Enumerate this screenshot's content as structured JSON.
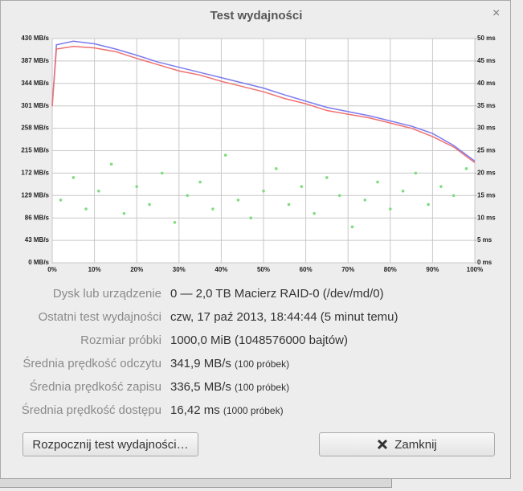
{
  "dialog": {
    "title": "Test wydajności",
    "close": "×",
    "rows": [
      {
        "label": "Dysk lub urządzenie",
        "value": "0 — 2,0 TB Macierz RAID-0 (/dev/md/0)"
      },
      {
        "label": "Ostatni test wydajności",
        "value": "czw, 17 paź 2013, 18:44:44 (5 minut temu)"
      },
      {
        "label": "Rozmiar próbki",
        "value": "1000,0 MiB (1048576000 bajtów)"
      },
      {
        "label": "Średnia prędkość odczytu",
        "value": "341,9 MB/s",
        "note": "(100 próbek)"
      },
      {
        "label": "Średnia prędkość zapisu",
        "value": "336,5 MB/s",
        "note": "(100 próbek)"
      },
      {
        "label": "Średnia prędkość dostępu",
        "value": "16,42 ms",
        "note": "(1000 próbek)"
      }
    ],
    "buttons": {
      "start": "Rozpocznij test wydajności…",
      "close": "Zamknij"
    }
  },
  "chart_data": {
    "type": "line",
    "x": [
      0,
      1,
      5,
      10,
      15,
      20,
      25,
      30,
      35,
      40,
      45,
      50,
      55,
      60,
      65,
      70,
      75,
      80,
      85,
      90,
      95,
      100
    ],
    "xlim": [
      0,
      100
    ],
    "xticks": [
      {
        "value": 0,
        "label": "0%"
      },
      {
        "value": 10,
        "label": "10%"
      },
      {
        "value": 20,
        "label": "20%"
      },
      {
        "value": 30,
        "label": "30%"
      },
      {
        "value": 40,
        "label": "40%"
      },
      {
        "value": 50,
        "label": "50%"
      },
      {
        "value": 60,
        "label": "60%"
      },
      {
        "value": 70,
        "label": "70%"
      },
      {
        "value": 80,
        "label": "80%"
      },
      {
        "value": 90,
        "label": "90%"
      },
      {
        "value": 100,
        "label": "100%"
      }
    ],
    "ylim": [
      0,
      430
    ],
    "yticks": [
      {
        "value": 0,
        "label": "0 MB/s"
      },
      {
        "value": 43,
        "label": "43 MB/s"
      },
      {
        "value": 86,
        "label": "86 MB/s"
      },
      {
        "value": 129,
        "label": "129 MB/s"
      },
      {
        "value": 172,
        "label": "172 MB/s"
      },
      {
        "value": 215,
        "label": "215 MB/s"
      },
      {
        "value": 258,
        "label": "258 MB/s"
      },
      {
        "value": 301,
        "label": "301 MB/s"
      },
      {
        "value": 344,
        "label": "344 MB/s"
      },
      {
        "value": 387,
        "label": "387 MB/s"
      },
      {
        "value": 430,
        "label": "430 MB/s"
      }
    ],
    "y2lim": [
      0,
      50
    ],
    "y2ticks": [
      {
        "value": 0,
        "label": "0 ms"
      },
      {
        "value": 5,
        "label": "5 ms"
      },
      {
        "value": 10,
        "label": "10 ms"
      },
      {
        "value": 15,
        "label": "15 ms"
      },
      {
        "value": 20,
        "label": "20 ms"
      },
      {
        "value": 25,
        "label": "25 ms"
      },
      {
        "value": 30,
        "label": "30 ms"
      },
      {
        "value": 35,
        "label": "35 ms"
      },
      {
        "value": 40,
        "label": "40 ms"
      },
      {
        "value": 45,
        "label": "45 ms"
      },
      {
        "value": 50,
        "label": "50 ms"
      }
    ],
    "grid": true,
    "series": [
      {
        "color": "#7b7bf0",
        "values": [
          302,
          418,
          425,
          420,
          410,
          398,
          385,
          375,
          365,
          355,
          345,
          335,
          322,
          310,
          298,
          290,
          282,
          272,
          262,
          248,
          225,
          195
        ]
      },
      {
        "color": "#f07070",
        "values": [
          300,
          410,
          415,
          412,
          405,
          392,
          380,
          368,
          360,
          348,
          338,
          328,
          315,
          305,
          292,
          285,
          278,
          268,
          258,
          242,
          222,
          192
        ]
      },
      {
        "type": "scatter",
        "axis": "y2",
        "color": "#80dc80",
        "x": [
          2,
          5,
          8,
          11,
          14,
          17,
          20,
          23,
          26,
          29,
          32,
          35,
          38,
          41,
          44,
          47,
          50,
          53,
          56,
          59,
          62,
          65,
          68,
          71,
          74,
          77,
          80,
          83,
          86,
          89,
          92,
          95,
          98
        ],
        "values": [
          14,
          19,
          12,
          16,
          22,
          11,
          17,
          13,
          20,
          9,
          15,
          18,
          12,
          24,
          14,
          10,
          16,
          21,
          13,
          17,
          11,
          19,
          15,
          8,
          14,
          18,
          12,
          16,
          20,
          13,
          17,
          15,
          21
        ]
      }
    ]
  }
}
